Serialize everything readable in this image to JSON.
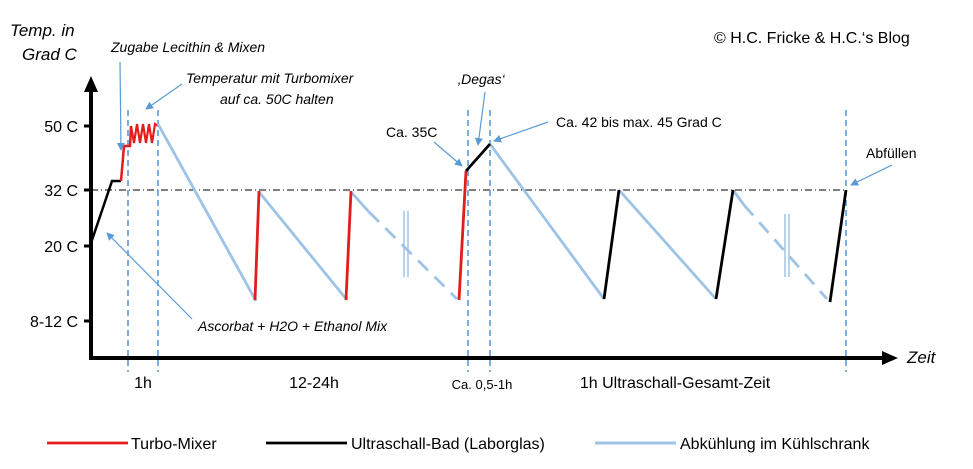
{
  "title": {
    "ylabel_line1": "Temp. in",
    "ylabel_line2": "Grad C",
    "xlabel": "Zeit",
    "copyright": "© H.C. Fricke & H.C.‘s Blog"
  },
  "y_ticks": [
    {
      "label": "50 C",
      "value": 50
    },
    {
      "label": "32 C",
      "value": 32
    },
    {
      "label": "20 C",
      "value": 20
    },
    {
      "label": "8-12 C",
      "value": 10
    }
  ],
  "phases": {
    "p1": "1h",
    "p2": "12-24h",
    "p3": "Ca. 0,5-1h",
    "p4": "1h Ultraschall-Gesamt-Zeit"
  },
  "annotations": {
    "lecithin": "Zugabe Lecithin & Mixen",
    "turbo_line1": "Temperatur mit Turbomixer",
    "turbo_line2": "auf ca. 50C halten",
    "ca35": "Ca. 35C",
    "degas": "‚Degas‘",
    "ca42": "Ca. 42 bis max. 45 Grad C",
    "abfuellen": "Abfüllen",
    "ascorbat": "Ascorbat + H2O + Ethanol Mix"
  },
  "legend": [
    {
      "label": "Turbo-Mixer",
      "color": "#e31c1c"
    },
    {
      "label": "Ultraschall-Bad (Laborglas)",
      "color": "#000000"
    },
    {
      "label": "Abkühlung im Kühlschrank",
      "color": "#9dc3e6"
    }
  ],
  "colors": {
    "turbo": "#e31c1c",
    "ultrasonic": "#000000",
    "cooling": "#9dc3e6",
    "marker": "#5b9bd5",
    "axis": "#000000"
  }
}
